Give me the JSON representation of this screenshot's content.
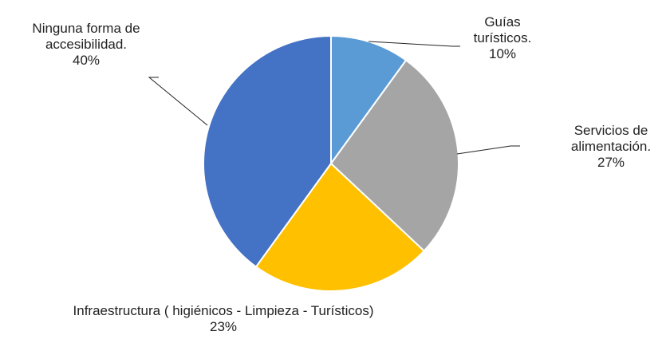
{
  "chart_data": {
    "type": "pie",
    "categories": [
      "Guías turísticos.",
      "Servicios de alimentación.",
      "Infraestructura ( higiénicos - Limpieza - Turísticos)",
      "Ninguna forma de accesibilidad."
    ],
    "values": [
      10,
      27,
      23,
      40
    ],
    "value_labels": [
      "10%",
      "27%",
      "23%",
      "40%"
    ],
    "colors": [
      "#5b9bd5",
      "#a5a5a5",
      "#ffc000",
      "#4472c4"
    ]
  }
}
